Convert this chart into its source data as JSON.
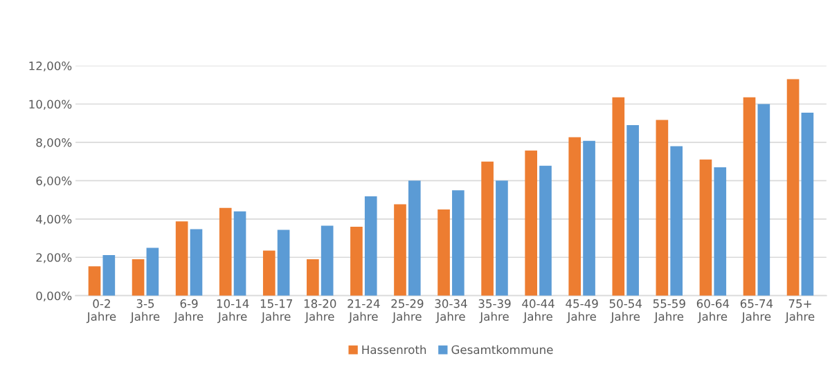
{
  "chart_data": {
    "type": "bar",
    "categories": [
      "0-2\nJahre",
      "3-5\nJahre",
      "6-9\nJahre",
      "10-14\nJahre",
      "15-17\nJahre",
      "18-20\nJahre",
      "21-24\nJahre",
      "25-29\nJahre",
      "30-34\nJahre",
      "35-39\nJahre",
      "40-44\nJahre",
      "45-49\nJahre",
      "50-54\nJahre",
      "55-59\nJahre",
      "60-64\nJahre",
      "65-74\nJahre",
      "75+\nJahre"
    ],
    "series": [
      {
        "name": "Hassenroth",
        "color": "#ed7d31",
        "values": [
          1.53,
          1.9,
          3.88,
          4.58,
          2.35,
          1.9,
          3.6,
          4.77,
          4.5,
          7.0,
          7.57,
          8.27,
          10.35,
          9.17,
          7.1,
          10.35,
          11.3
        ]
      },
      {
        "name": "Gesamtkommune",
        "color": "#5b9bd5",
        "values": [
          2.12,
          2.5,
          3.47,
          4.4,
          3.43,
          3.65,
          5.18,
          6.0,
          5.5,
          6.0,
          6.78,
          8.08,
          8.9,
          7.8,
          6.7,
          10.0,
          9.55
        ]
      }
    ],
    "ylim": [
      0,
      12
    ],
    "yticks": [
      {
        "value": 0,
        "label": "0,00%"
      },
      {
        "value": 2,
        "label": "2,00%"
      },
      {
        "value": 4,
        "label": "4,00%"
      },
      {
        "value": 6,
        "label": "6,00%"
      },
      {
        "value": 8,
        "label": "8,00%"
      },
      {
        "value": 10,
        "label": "10,00%"
      },
      {
        "value": 12,
        "label": "12,00%"
      }
    ],
    "grid": "y",
    "legend": "bottom"
  }
}
